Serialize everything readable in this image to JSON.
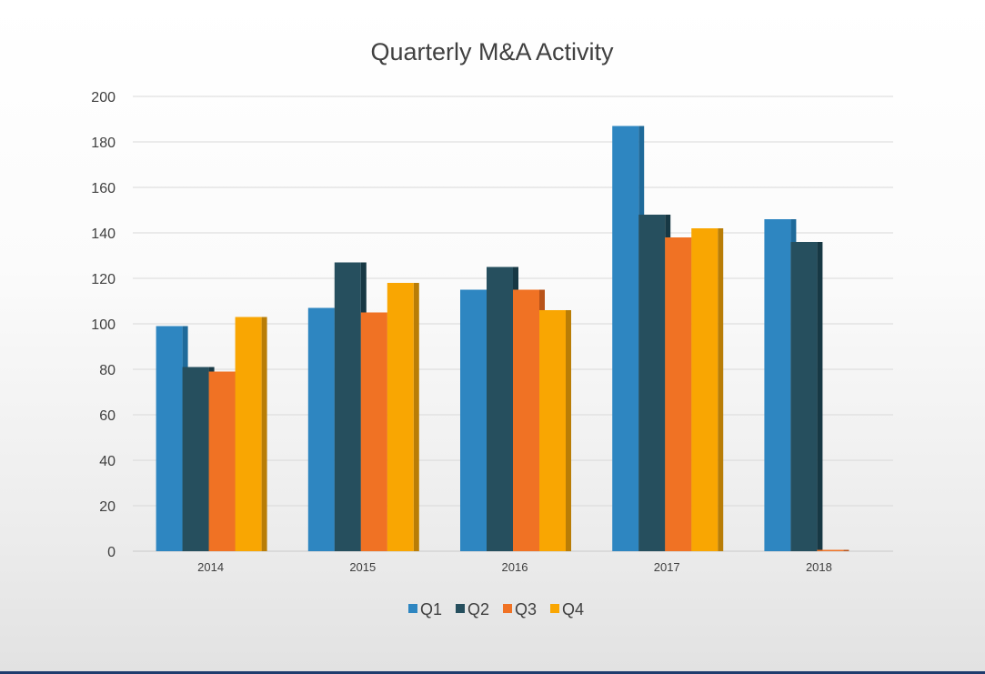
{
  "chart_data": {
    "type": "bar",
    "title": "Quarterly M&A Activity",
    "xlabel": "",
    "ylabel": "",
    "categories": [
      "2014",
      "2015",
      "2016",
      "2017",
      "2018"
    ],
    "series": [
      {
        "name": "Q1",
        "color": "#2e86c1",
        "side_color": "#1f6a9a",
        "values": [
          99,
          107,
          115,
          187,
          146
        ]
      },
      {
        "name": "Q2",
        "color": "#264f5e",
        "side_color": "#173844",
        "values": [
          81,
          127,
          125,
          148,
          136
        ]
      },
      {
        "name": "Q3",
        "color": "#f07224",
        "side_color": "#b8531a",
        "values": [
          79,
          105,
          115,
          138,
          0
        ]
      },
      {
        "name": "Q4",
        "color": "#f9a602",
        "side_color": "#b97d06",
        "values": [
          103,
          118,
          106,
          142,
          null
        ]
      }
    ],
    "ylim": [
      0,
      200
    ],
    "yticks": [
      0,
      20,
      40,
      60,
      80,
      100,
      120,
      140,
      160,
      180,
      200
    ],
    "grid": true,
    "legend_position": "bottom"
  }
}
